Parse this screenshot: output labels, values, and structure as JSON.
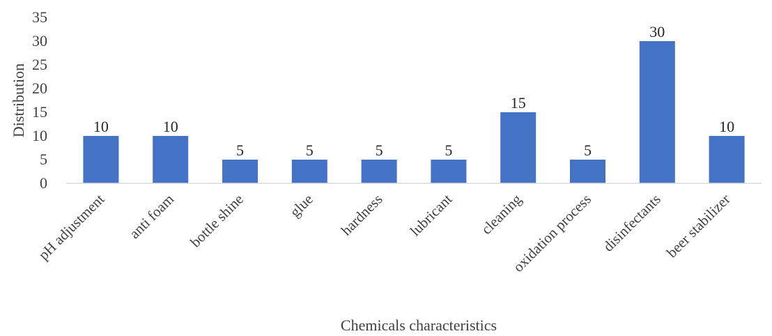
{
  "chart_data": {
    "type": "bar",
    "categories": [
      "pH adjustment",
      "anti foam",
      "bottle shine",
      "glue",
      "hardness",
      "lubricant",
      "cleaning",
      "oxidation process",
      "disinfectants",
      "beer stabilizer"
    ],
    "values": [
      10,
      10,
      5,
      5,
      5,
      5,
      15,
      5,
      30,
      10
    ],
    "data_labels": [
      "10",
      "10",
      "5",
      "5",
      "5",
      "5",
      "15",
      "5",
      "30",
      "10"
    ],
    "title": "",
    "xlabel": "Chemicals characteristics",
    "ylabel": "Distribution",
    "ylim": [
      0,
      35
    ],
    "yticks": [
      0,
      5,
      10,
      15,
      20,
      25,
      30,
      35
    ],
    "ytick_labels": [
      "0",
      "5",
      "10",
      "15",
      "20",
      "25",
      "30",
      "35"
    ],
    "grid": false,
    "legend": "none",
    "bar_color": "#4472c4"
  }
}
